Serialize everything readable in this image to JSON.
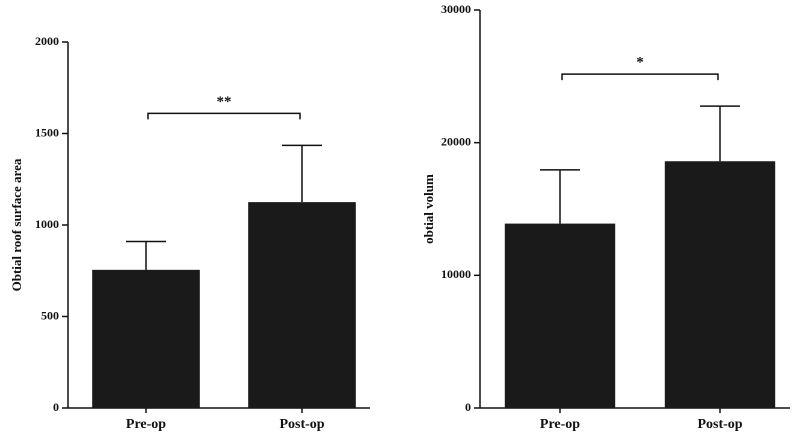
{
  "chart_data": [
    {
      "type": "bar",
      "ylabel": "Obtial roof surface area",
      "categories": [
        "Pre-op",
        "Post-op"
      ],
      "values": [
        755,
        1125
      ],
      "errors": [
        155,
        310
      ],
      "color": "#1a1a1a",
      "ylim": [
        0,
        2000
      ],
      "yticks": [
        0,
        500,
        1000,
        1500,
        2000
      ],
      "significance": "**"
    },
    {
      "type": "bar",
      "ylabel": "obtial volum",
      "categories": [
        "Pre-op",
        "Post-op"
      ],
      "values": [
        13900,
        18600
      ],
      "errors": [
        4050,
        4150
      ],
      "color": "#1a1a1a",
      "ylim": [
        0,
        30000
      ],
      "yticks": [
        0,
        10000,
        20000,
        30000
      ],
      "significance": "*"
    }
  ]
}
